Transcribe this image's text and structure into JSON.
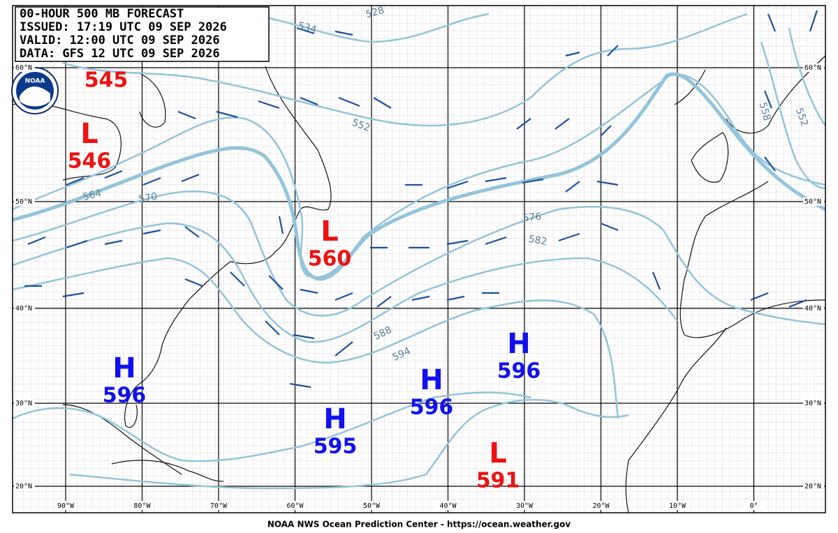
{
  "header": {
    "lines": [
      "00-HOUR 500 MB FORECAST",
      "ISSUED: 17:19 UTC 09 SEP 2026",
      "VALID:  12:00 UTC 09 SEP 2026",
      "DATA:  GFS 12 UTC 09 SEP 2026"
    ]
  },
  "logo": "NOAA",
  "latitude_labels": [
    "60°N",
    "50°N",
    "40°N",
    "30°N",
    "20°N"
  ],
  "longitude_labels": [
    "90°W",
    "80°W",
    "70°W",
    "60°W",
    "50°W",
    "40°W",
    "30°W",
    "20°W",
    "10°W",
    "0°"
  ],
  "contour_labels": [
    "534",
    "528",
    "552",
    "564",
    "570",
    "576",
    "582",
    "588",
    "594",
    "558",
    "552"
  ],
  "centers": [
    {
      "value": "545",
      "color": "red"
    },
    {
      "symbol": "L",
      "value": "546",
      "color": "red"
    },
    {
      "symbol": "L",
      "value": "560",
      "color": "red"
    },
    {
      "symbol": "H",
      "value": "596",
      "color": "blue"
    },
    {
      "symbol": "H",
      "value": "596",
      "color": "blue"
    },
    {
      "symbol": "H",
      "value": "596",
      "color": "blue"
    },
    {
      "symbol": "H",
      "value": "595",
      "color": "blue"
    },
    {
      "symbol": "L",
      "value": "591",
      "color": "red"
    }
  ],
  "footer": "NOAA NWS Ocean Prediction Center - https://ocean.weather.gov"
}
